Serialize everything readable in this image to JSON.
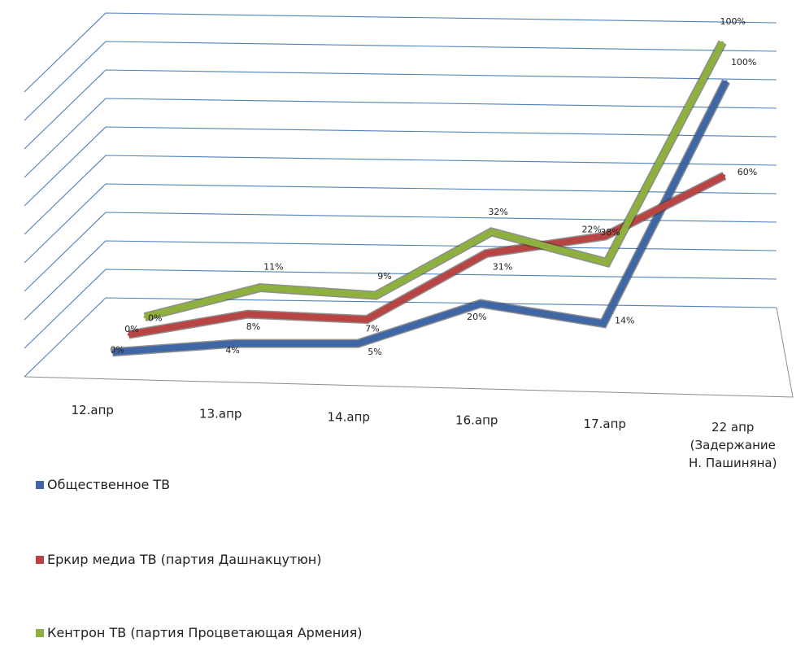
{
  "chart_data": {
    "type": "line",
    "categories": [
      "12.апр",
      "13.апр",
      "14.апр",
      "16.апр",
      "17.апр",
      "22 апр (Задержание Н. Пашиняна)"
    ],
    "category_lines": [
      [
        "12.апр"
      ],
      [
        "13.апр"
      ],
      [
        "14.апр"
      ],
      [
        "16.апр"
      ],
      [
        "17.апр"
      ],
      [
        "22 апр",
        "(Задержание",
        "Н. Пашиняна)"
      ]
    ],
    "series": [
      {
        "name": "Общественное ТВ",
        "color": "#3F66A5",
        "values": [
          0,
          4,
          5,
          20,
          14,
          100
        ],
        "labels": [
          "0%",
          "4%",
          "5%",
          "20%",
          "14%",
          "100%"
        ]
      },
      {
        "name": "Еркир медиа ТВ (партия Дашнакцутюн)",
        "color": "#B84543",
        "values": [
          0,
          8,
          7,
          31,
          38,
          60
        ],
        "labels": [
          "0%",
          "8%",
          "7%",
          "31%",
          "38%",
          "60%"
        ]
      },
      {
        "name": "Кентрон ТВ (партия Процветающая Армения)",
        "color": "#8EB03E",
        "values": [
          0,
          11,
          9,
          32,
          22,
          100
        ],
        "labels": [
          "0%",
          "11%",
          "9%",
          "32%",
          "22%",
          "100%"
        ]
      }
    ],
    "ylim": [
      0,
      100
    ],
    "grid": true,
    "legend": "bottom-left",
    "style": "3d-line"
  }
}
